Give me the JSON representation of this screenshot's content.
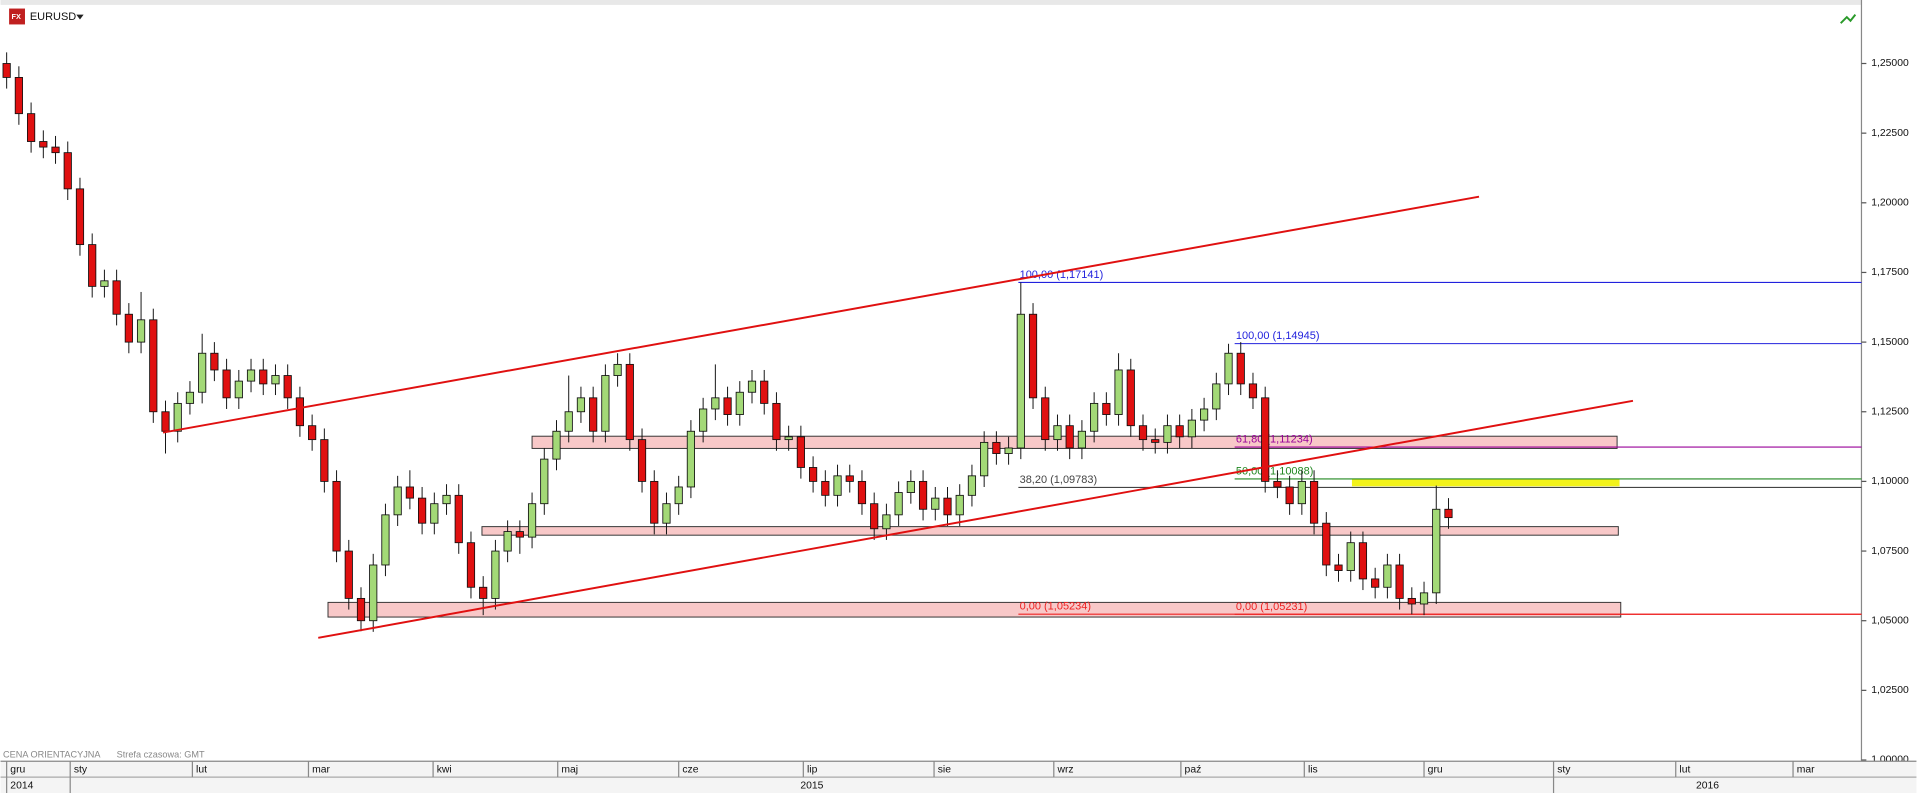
{
  "chart_data": {
    "type": "candlestick",
    "symbol": "EURUSD",
    "footer": "CENA ORIENTACYJNA",
    "timezone": "Strefa czasowa: GMT",
    "up_color": "#a3d977",
    "down_color": "#e01010",
    "ylim": [
      1.0,
      1.2706
    ],
    "yticks": [
      {
        "value": 1.0,
        "label": "1,00000"
      },
      {
        "value": 1.025,
        "label": "1,02500"
      },
      {
        "value": 1.05,
        "label": "1,05000"
      },
      {
        "value": 1.075,
        "label": "1,07500"
      },
      {
        "value": 1.1,
        "label": "1,10000"
      },
      {
        "value": 1.125,
        "label": "1,12500"
      },
      {
        "value": 1.15,
        "label": "1,15000"
      },
      {
        "value": 1.175,
        "label": "1,17500"
      },
      {
        "value": 1.2,
        "label": "1,20000"
      },
      {
        "value": 1.225,
        "label": "1,22500"
      },
      {
        "value": 1.25,
        "label": "1,25000"
      }
    ],
    "xlim": [
      -0.5,
      151.8
    ],
    "xticks": [
      {
        "value": 0,
        "label": "gru"
      },
      {
        "value": 5.2,
        "label": "sty"
      },
      {
        "value": 15.2,
        "label": "lut"
      },
      {
        "value": 24.7,
        "label": "mar"
      },
      {
        "value": 34.9,
        "label": "kwi"
      },
      {
        "value": 45.1,
        "label": "maj"
      },
      {
        "value": 55,
        "label": "cze"
      },
      {
        "value": 65.2,
        "label": "lip"
      },
      {
        "value": 75.9,
        "label": "sie"
      },
      {
        "value": 85.7,
        "label": "wrz"
      },
      {
        "value": 96.1,
        "label": "paź"
      },
      {
        "value": 106.2,
        "label": "lis"
      },
      {
        "value": 116,
        "label": "gru"
      },
      {
        "value": 126.6,
        "label": "sty"
      },
      {
        "value": 136.6,
        "label": "lut"
      },
      {
        "value": 146.2,
        "label": "mar"
      }
    ],
    "year_ticks": [
      {
        "value": 0,
        "label": "2014"
      },
      {
        "value": 5.2,
        "label": "2015"
      },
      {
        "value": 126.6,
        "label": "2016"
      }
    ],
    "levels": [
      {
        "label": "100,00 (1,17141)",
        "value": 1.17141,
        "color": "#2222dd"
      },
      {
        "label": "100,00 (1,14945)",
        "value": 1.14945,
        "color": "#2222dd"
      },
      {
        "label": "61,80 (1,11234)",
        "value": 1.11234,
        "color": "#990099"
      },
      {
        "label": "50,00 (1,10088)",
        "value": 1.10088,
        "color": "#228822"
      },
      {
        "label": "38,20 (1,09783)",
        "value": 1.09783,
        "color": "#444444"
      },
      {
        "label": "0,00 (1,05234)",
        "value": 1.05234,
        "color": "#ee2222"
      },
      {
        "label": "0,00 (1,05231)",
        "value": 1.05231,
        "color": "#ee2222"
      }
    ],
    "x": [
      0,
      1,
      2,
      3,
      4,
      5,
      6,
      7,
      8,
      9,
      10,
      11,
      12,
      13,
      14,
      15,
      16,
      17,
      18,
      19,
      20,
      21,
      22,
      23,
      24,
      25,
      26,
      27,
      28,
      29,
      30,
      31,
      32,
      33,
      34,
      35,
      36,
      37,
      38,
      39,
      40,
      41,
      42,
      43,
      44,
      45,
      46,
      47,
      48,
      49,
      50,
      51,
      52,
      53,
      54,
      55,
      56,
      57,
      58,
      59,
      60,
      61,
      62,
      63,
      64,
      65,
      66,
      67,
      68,
      69,
      70,
      71,
      72,
      73,
      74,
      75,
      76,
      77,
      78,
      79,
      80,
      81,
      82,
      83,
      84,
      85,
      86,
      87,
      88,
      89,
      90,
      91,
      92,
      93,
      94,
      95,
      96,
      97,
      98,
      99,
      100,
      101,
      102,
      103,
      104,
      105,
      106,
      107,
      108,
      109,
      110,
      111,
      112,
      113,
      114,
      115,
      116,
      117,
      118
    ],
    "candles": [
      [
        1.25,
        1.254,
        1.241,
        1.245
      ],
      [
        1.245,
        1.249,
        1.228,
        1.232
      ],
      [
        1.232,
        1.236,
        1.218,
        1.222
      ],
      [
        1.222,
        1.226,
        1.216,
        1.22
      ],
      [
        1.22,
        1.224,
        1.214,
        1.218
      ],
      [
        1.218,
        1.222,
        1.201,
        1.205
      ],
      [
        1.205,
        1.209,
        1.181,
        1.185
      ],
      [
        1.185,
        1.189,
        1.166,
        1.17
      ],
      [
        1.17,
        1.176,
        1.166,
        1.172
      ],
      [
        1.172,
        1.176,
        1.156,
        1.16
      ],
      [
        1.16,
        1.164,
        1.146,
        1.15
      ],
      [
        1.15,
        1.168,
        1.146,
        1.158
      ],
      [
        1.158,
        1.162,
        1.121,
        1.125
      ],
      [
        1.125,
        1.129,
        1.11,
        1.118
      ],
      [
        1.118,
        1.132,
        1.114,
        1.128
      ],
      [
        1.128,
        1.136,
        1.124,
        1.132
      ],
      [
        1.132,
        1.153,
        1.128,
        1.146
      ],
      [
        1.146,
        1.15,
        1.136,
        1.14
      ],
      [
        1.14,
        1.144,
        1.126,
        1.13
      ],
      [
        1.13,
        1.14,
        1.126,
        1.136
      ],
      [
        1.136,
        1.144,
        1.132,
        1.14
      ],
      [
        1.14,
        1.144,
        1.131,
        1.135
      ],
      [
        1.135,
        1.142,
        1.131,
        1.138
      ],
      [
        1.138,
        1.142,
        1.126,
        1.13
      ],
      [
        1.13,
        1.134,
        1.116,
        1.12
      ],
      [
        1.12,
        1.124,
        1.111,
        1.115
      ],
      [
        1.115,
        1.119,
        1.096,
        1.1
      ],
      [
        1.1,
        1.104,
        1.071,
        1.075
      ],
      [
        1.075,
        1.079,
        1.054,
        1.058
      ],
      [
        1.058,
        1.062,
        1.0462,
        1.05
      ],
      [
        1.05,
        1.074,
        1.046,
        1.07
      ],
      [
        1.07,
        1.092,
        1.066,
        1.088
      ],
      [
        1.088,
        1.102,
        1.084,
        1.098
      ],
      [
        1.098,
        1.104,
        1.09,
        1.094
      ],
      [
        1.094,
        1.098,
        1.081,
        1.085
      ],
      [
        1.085,
        1.096,
        1.081,
        1.092
      ],
      [
        1.092,
        1.099,
        1.088,
        1.095
      ],
      [
        1.095,
        1.099,
        1.074,
        1.078
      ],
      [
        1.078,
        1.082,
        1.058,
        1.062
      ],
      [
        1.062,
        1.066,
        1.052,
        1.058
      ],
      [
        1.058,
        1.079,
        1.054,
        1.075
      ],
      [
        1.075,
        1.086,
        1.071,
        1.082
      ],
      [
        1.082,
        1.086,
        1.074,
        1.08
      ],
      [
        1.08,
        1.096,
        1.076,
        1.092
      ],
      [
        1.092,
        1.112,
        1.088,
        1.108
      ],
      [
        1.108,
        1.122,
        1.104,
        1.118
      ],
      [
        1.118,
        1.138,
        1.114,
        1.125
      ],
      [
        1.125,
        1.134,
        1.121,
        1.13
      ],
      [
        1.13,
        1.134,
        1.114,
        1.118
      ],
      [
        1.118,
        1.142,
        1.114,
        1.138
      ],
      [
        1.138,
        1.146,
        1.134,
        1.142
      ],
      [
        1.142,
        1.146,
        1.111,
        1.115
      ],
      [
        1.115,
        1.119,
        1.096,
        1.1
      ],
      [
        1.1,
        1.104,
        1.081,
        1.085
      ],
      [
        1.085,
        1.096,
        1.081,
        1.092
      ],
      [
        1.092,
        1.102,
        1.088,
        1.098
      ],
      [
        1.098,
        1.122,
        1.094,
        1.118
      ],
      [
        1.118,
        1.13,
        1.114,
        1.126
      ],
      [
        1.126,
        1.142,
        1.122,
        1.13
      ],
      [
        1.13,
        1.134,
        1.12,
        1.124
      ],
      [
        1.124,
        1.136,
        1.12,
        1.132
      ],
      [
        1.132,
        1.14,
        1.128,
        1.136
      ],
      [
        1.136,
        1.14,
        1.124,
        1.128
      ],
      [
        1.128,
        1.132,
        1.111,
        1.115
      ],
      [
        1.115,
        1.12,
        1.111,
        1.116
      ],
      [
        1.116,
        1.12,
        1.101,
        1.105
      ],
      [
        1.105,
        1.109,
        1.096,
        1.1
      ],
      [
        1.1,
        1.104,
        1.091,
        1.095
      ],
      [
        1.095,
        1.106,
        1.091,
        1.102
      ],
      [
        1.102,
        1.106,
        1.096,
        1.1
      ],
      [
        1.1,
        1.104,
        1.088,
        1.092
      ],
      [
        1.092,
        1.096,
        1.079,
        1.083
      ],
      [
        1.083,
        1.092,
        1.079,
        1.088
      ],
      [
        1.088,
        1.1,
        1.084,
        1.096
      ],
      [
        1.096,
        1.104,
        1.092,
        1.1
      ],
      [
        1.1,
        1.104,
        1.086,
        1.09
      ],
      [
        1.09,
        1.098,
        1.086,
        1.094
      ],
      [
        1.094,
        1.098,
        1.084,
        1.088
      ],
      [
        1.088,
        1.099,
        1.084,
        1.095
      ],
      [
        1.095,
        1.106,
        1.091,
        1.102
      ],
      [
        1.102,
        1.118,
        1.098,
        1.114
      ],
      [
        1.114,
        1.118,
        1.106,
        1.11
      ],
      [
        1.11,
        1.116,
        1.106,
        1.112
      ],
      [
        1.112,
        1.1714,
        1.108,
        1.16
      ],
      [
        1.16,
        1.164,
        1.126,
        1.13
      ],
      [
        1.13,
        1.134,
        1.111,
        1.115
      ],
      [
        1.115,
        1.124,
        1.111,
        1.12
      ],
      [
        1.12,
        1.124,
        1.108,
        1.112
      ],
      [
        1.112,
        1.122,
        1.108,
        1.118
      ],
      [
        1.118,
        1.132,
        1.114,
        1.128
      ],
      [
        1.128,
        1.132,
        1.12,
        1.124
      ],
      [
        1.124,
        1.146,
        1.12,
        1.14
      ],
      [
        1.14,
        1.144,
        1.116,
        1.12
      ],
      [
        1.12,
        1.124,
        1.111,
        1.115
      ],
      [
        1.115,
        1.119,
        1.11,
        1.114
      ],
      [
        1.114,
        1.124,
        1.11,
        1.12
      ],
      [
        1.12,
        1.124,
        1.112,
        1.116
      ],
      [
        1.116,
        1.126,
        1.112,
        1.122
      ],
      [
        1.122,
        1.13,
        1.118,
        1.126
      ],
      [
        1.126,
        1.139,
        1.122,
        1.135
      ],
      [
        1.135,
        1.1494,
        1.131,
        1.146
      ],
      [
        1.146,
        1.15,
        1.131,
        1.135
      ],
      [
        1.135,
        1.139,
        1.126,
        1.13
      ],
      [
        1.13,
        1.134,
        1.096,
        1.1
      ],
      [
        1.1,
        1.104,
        1.094,
        1.098
      ],
      [
        1.098,
        1.102,
        1.088,
        1.092
      ],
      [
        1.092,
        1.104,
        1.088,
        1.1
      ],
      [
        1.1,
        1.104,
        1.081,
        1.085
      ],
      [
        1.085,
        1.089,
        1.066,
        1.07
      ],
      [
        1.07,
        1.074,
        1.064,
        1.068
      ],
      [
        1.068,
        1.082,
        1.064,
        1.078
      ],
      [
        1.078,
        1.082,
        1.061,
        1.065
      ],
      [
        1.065,
        1.069,
        1.058,
        1.062
      ],
      [
        1.062,
        1.074,
        1.058,
        1.07
      ],
      [
        1.07,
        1.074,
        1.054,
        1.058
      ],
      [
        1.058,
        1.062,
        1.0523,
        1.056
      ],
      [
        1.056,
        1.064,
        1.052,
        1.06
      ],
      [
        1.06,
        1.0985,
        1.056,
        1.09
      ],
      [
        1.09,
        1.094,
        1.083,
        1.087
      ]
    ]
  }
}
